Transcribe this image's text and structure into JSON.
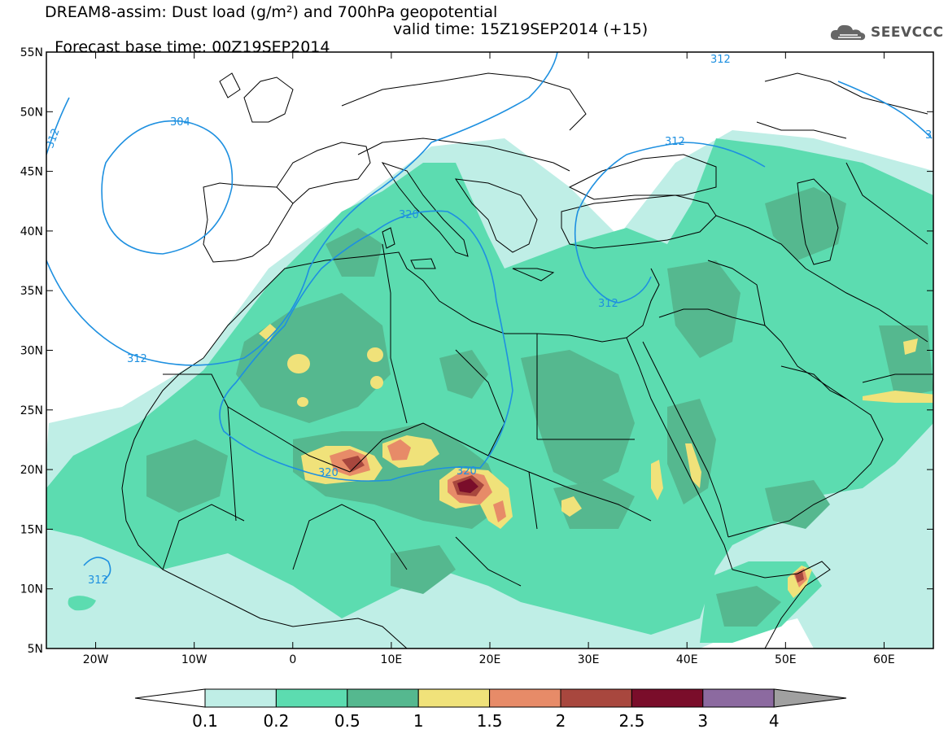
{
  "title": {
    "line1": "DREAM8-assim: Dust load (g/m²) and 700hPa geopotential",
    "line2_left": "Forecast base time: 00Z19SEP2014",
    "line2_right": "valid time: 15Z19SEP2014 (+15)"
  },
  "logo": {
    "text": "SEEVCCC",
    "icon": "cloud-icon"
  },
  "axes": {
    "lat_labels": [
      "55N",
      "50N",
      "45N",
      "40N",
      "35N",
      "30N",
      "25N",
      "20N",
      "15N",
      "10N",
      "5N"
    ],
    "lon_labels": [
      "20W",
      "10W",
      "0",
      "10E",
      "20E",
      "30E",
      "40E",
      "50E",
      "60E"
    ]
  },
  "contours": {
    "labels": [
      "304",
      "312",
      "312",
      "312",
      "312",
      "312",
      "312",
      "320",
      "320",
      "320",
      "3"
    ]
  },
  "colorbar": {
    "labels": [
      "0.1",
      "0.2",
      "0.5",
      "1",
      "1.5",
      "2",
      "2.5",
      "3",
      "4"
    ],
    "colors": [
      "#ffffff",
      "#bfeee6",
      "#5cdcb0",
      "#55b88f",
      "#f0e27a",
      "#e78b68",
      "#a8473e",
      "#7a0d2a",
      "#8c6aa0",
      "#a0a0a0"
    ]
  },
  "map_colors": {
    "ocean": "#ffffff",
    "dust_01": "#bfeee6",
    "dust_02": "#5cdcb0",
    "dust_05": "#55b88f",
    "dust_1": "#f0e27a",
    "dust_15": "#e78b68",
    "dust_2": "#a8473e",
    "dust_25": "#7a0d2a",
    "contour": "#1e90e0",
    "border": "#000000"
  }
}
